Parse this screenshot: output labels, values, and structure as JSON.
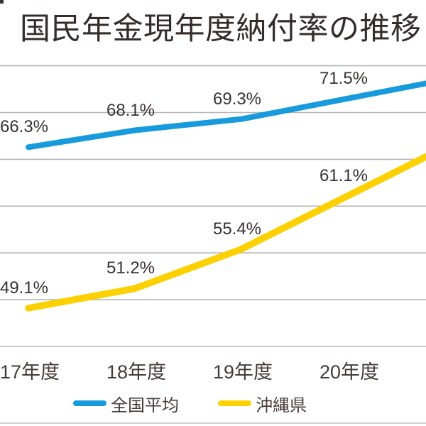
{
  "title": "国民年金現年度納付率の推移",
  "chart_data": {
    "type": "line",
    "categories": [
      "17年度",
      "18年度",
      "19年度",
      "20年度"
    ],
    "series": [
      {
        "name": "全国平均",
        "values": [
          66.3,
          68.1,
          69.3,
          71.5
        ],
        "color": "#189bdc"
      },
      {
        "name": "沖縄県",
        "values": [
          49.1,
          51.2,
          55.4,
          61.1
        ],
        "color": "#fdd000"
      }
    ],
    "data_labels": [
      "66.3%",
      "68.1%",
      "69.3%",
      "71.5%",
      "49.1%",
      "51.2%",
      "55.4%",
      "61.1%"
    ],
    "ylim": [
      45,
      75
    ],
    "grid_step_percent": 5,
    "grid": true,
    "gridline_color": "#b5b5b5",
    "legend_position": "bottom",
    "cropped_right_edge": true
  },
  "legend": {
    "items": [
      {
        "label": "全国平均",
        "color": "#189bdc"
      },
      {
        "label": "沖縄県",
        "color": "#fdd000"
      }
    ]
  },
  "colors": {
    "title_text": "#352c2c",
    "label_text": "#3a3232",
    "axis_text": "#453b3a",
    "grid": "#b5b5b5",
    "divider": "#cfcfcf"
  }
}
